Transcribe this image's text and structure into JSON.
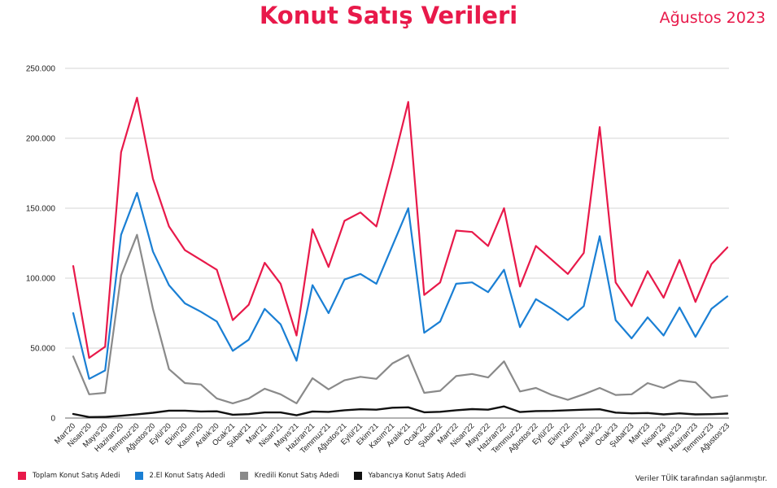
{
  "header": {
    "title": "Konut Satış Verileri",
    "date": "Ağustos 2023",
    "accent_color": "#e8194a"
  },
  "footer": {
    "source_note": "Veriler TÜİK tarafından sağlanmıştır."
  },
  "chart_data": {
    "type": "line",
    "title": "Konut Satış Verileri",
    "xlabel": "",
    "ylabel": "",
    "ylim": [
      0,
      250000
    ],
    "yticks": [
      0,
      50000,
      100000,
      150000,
      200000,
      250000
    ],
    "ytick_labels": [
      "0",
      "50.000",
      "100.000",
      "150.000",
      "200.000",
      "250.000"
    ],
    "grid": "horizontal",
    "legend_position": "bottom-left",
    "categories": [
      "Mart'20",
      "Nisan'20",
      "Mayıs'20",
      "Haziran'20",
      "Temmuz'20",
      "Ağustos'20",
      "Eylül'20",
      "Ekim'20",
      "Kasım'20",
      "Aralık'20",
      "Ocak'21",
      "Şubat'21",
      "Mart'21",
      "Nisan'21",
      "Mayıs'21",
      "Haziran'21",
      "Temmuz'21",
      "Ağustos'21",
      "Eylül'21",
      "Ekim'21",
      "Kasım'21",
      "Aralık'21",
      "Ocak'22",
      "Şubat'22",
      "Mart'22",
      "Nisan'22",
      "Mayıs'22",
      "Haziran'22",
      "Temmuz'22",
      "Ağustos'22",
      "Eylül'22",
      "Ekim'22",
      "Kasım'22",
      "Aralık'22",
      "Ocak'23",
      "Şubat'23",
      "Mart'23",
      "Nisan'23",
      "Mayıs'23",
      "Haziran'23",
      "Temmuz'23",
      "Ağustos'23"
    ],
    "series": [
      {
        "name": "Toplam Konut Satış Adedi",
        "color": "#e8194a",
        "values": [
          108669,
          43000,
          51000,
          190000,
          229000,
          171000,
          137000,
          120000,
          113000,
          106000,
          70000,
          81000,
          111000,
          96000,
          59000,
          135000,
          108000,
          141000,
          147000,
          137000,
          180000,
          226000,
          88000,
          97000,
          134000,
          133000,
          123000,
          150000,
          94000,
          123000,
          113000,
          103000,
          118000,
          208000,
          97000,
          80000,
          105000,
          86000,
          113000,
          83000,
          110000,
          122000
        ]
      },
      {
        "name": "2.El Konut Satış Adedi",
        "color": "#1a7fd4",
        "values": [
          75000,
          28000,
          34000,
          131000,
          161000,
          119000,
          95000,
          82000,
          76000,
          69000,
          48000,
          56000,
          78000,
          67000,
          41000,
          95000,
          75000,
          99000,
          103000,
          96000,
          123000,
          150000,
          61000,
          69000,
          96000,
          97000,
          90000,
          106000,
          65000,
          85000,
          78000,
          70000,
          80000,
          130000,
          70000,
          57000,
          72000,
          59000,
          79000,
          58000,
          78000,
          87000
        ]
      },
      {
        "name": "Kredili Konut Satış Adedi",
        "color": "#8a8a8a",
        "values": [
          44000,
          17000,
          18000,
          102000,
          131000,
          78000,
          35000,
          25000,
          24000,
          14000,
          10500,
          14000,
          21000,
          17000,
          10500,
          28500,
          20500,
          27000,
          29500,
          28000,
          39000,
          45000,
          18000,
          19500,
          30000,
          31500,
          29000,
          40500,
          19000,
          21500,
          16500,
          13000,
          17000,
          21500,
          16500,
          17000,
          25000,
          21500,
          27000,
          25500,
          14500,
          16000
        ]
      },
      {
        "name": "Yabancıya Konut Satış Adedi",
        "color": "#111111",
        "values": [
          2900,
          700,
          800,
          1600,
          2700,
          3800,
          5300,
          5300,
          4700,
          4800,
          2400,
          2800,
          4000,
          4000,
          2000,
          4700,
          4400,
          5600,
          6300,
          6000,
          7400,
          7700,
          4100,
          4500,
          5600,
          6400,
          6000,
          8300,
          4300,
          5000,
          5100,
          5600,
          6000,
          6300,
          3900,
          3400,
          3600,
          2600,
          3400,
          2600,
          2800,
          3200
        ]
      }
    ]
  }
}
